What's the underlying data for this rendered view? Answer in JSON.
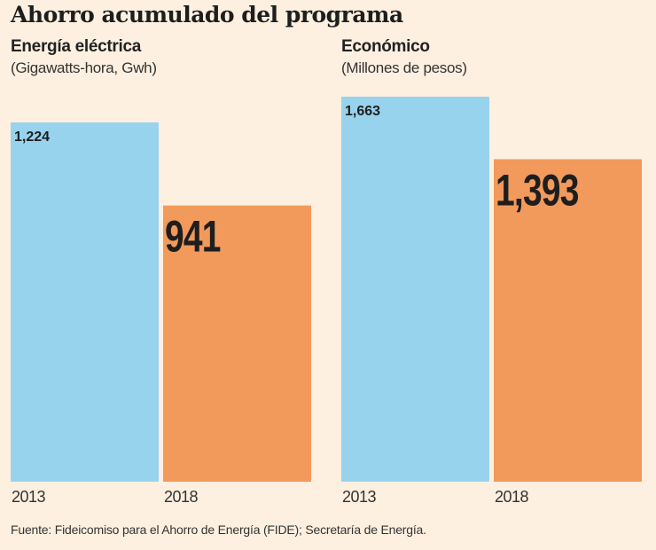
{
  "title": "Ahorro acumulado del programa",
  "source": "Fuente: Fideicomiso para el Ahorro de Energía (FIDE); Secretaría de Energía.",
  "colors": {
    "background": "#fdf0e0",
    "bar_2013": "#98d3ee",
    "bar_2018": "#f29a5b"
  },
  "chart_data": [
    {
      "type": "bar",
      "title": "Energía eléctrica",
      "subtitle": "(Gigawatts-hora, Gwh)",
      "categories": [
        "2013",
        "2018"
      ],
      "values": [
        1224,
        941
      ],
      "data_labels": [
        "1,224",
        "941"
      ],
      "grid": false,
      "ylim": [
        0,
        1224
      ]
    },
    {
      "type": "bar",
      "title": "Económico",
      "subtitle": "(Millones de pesos)",
      "categories": [
        "2013",
        "2018"
      ],
      "values": [
        1663,
        1393
      ],
      "data_labels": [
        "1,663",
        "1,393"
      ],
      "grid": false,
      "ylim": [
        0,
        1663
      ]
    }
  ]
}
